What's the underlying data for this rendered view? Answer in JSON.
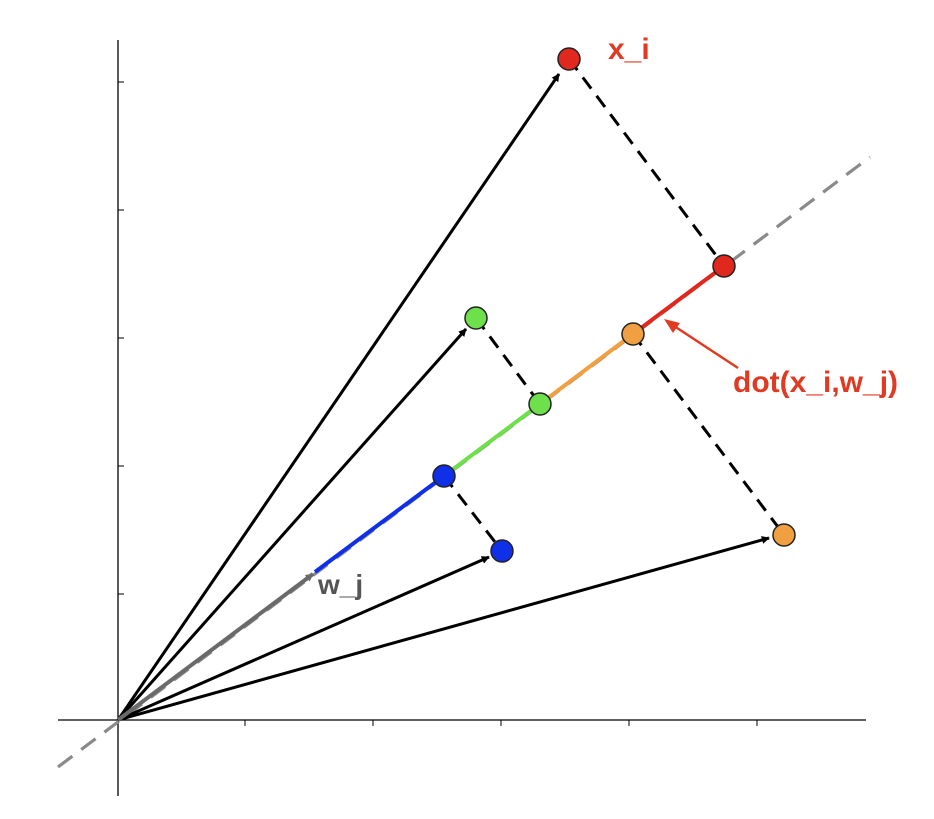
{
  "labels": {
    "point_label": "x_i",
    "vector_label": "w_j",
    "dot_label": "dot(x_i,w_j)"
  },
  "colors": {
    "red": "#e0281e",
    "green": "#6ee04c",
    "orange": "#f0a040",
    "blue": "#1030e8",
    "arrow": "#000000",
    "w_arrow": "#6a6a6a",
    "dashed_line": "#8a8a8a",
    "projection_dash": "#000000",
    "label_red": "#e03a22",
    "label_gray": "#555555"
  }
}
